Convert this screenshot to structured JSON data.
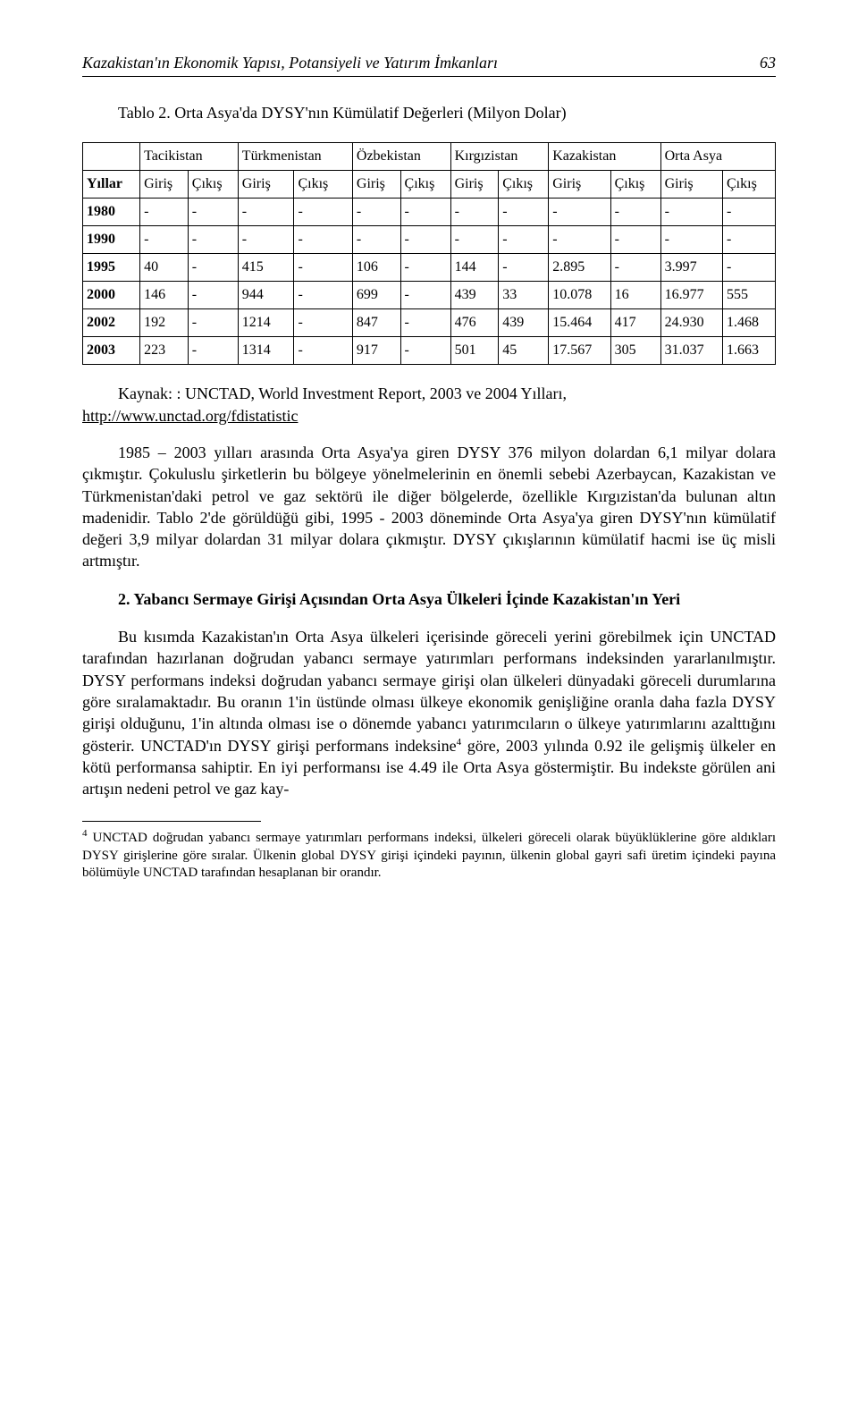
{
  "header": {
    "title_left": "Kazakistan'ın Ekonomik Yapısı, Potansiyeli ve Yatırım İmkanları",
    "page_num": "63"
  },
  "table": {
    "caption": "Tablo 2. Orta Asya'da DYSY'nın Kümülatif Değerleri (Milyon Dolar)",
    "countries": [
      "Tacikistan",
      "Türkmenistan",
      "Özbekistan",
      "Kırgızistan",
      "Kazakistan",
      "Orta Asya"
    ],
    "years_label": "Yıllar",
    "subheads": [
      "Giriş",
      "Çıkış",
      "Giriş",
      "Çıkış",
      "Giriş",
      "Çıkış",
      "Giriş",
      "Çıkış",
      "Giriş",
      "Çıkış",
      "Giriş",
      "Çıkış"
    ],
    "rows": [
      {
        "year": "1980",
        "cells": [
          "-",
          "-",
          "-",
          "-",
          "-",
          "-",
          "-",
          "-",
          "-",
          "-",
          "-",
          "-"
        ]
      },
      {
        "year": "1990",
        "cells": [
          "-",
          "-",
          "-",
          "-",
          "-",
          "-",
          "-",
          "-",
          "-",
          "-",
          "-",
          "-"
        ]
      },
      {
        "year": "1995",
        "cells": [
          "40",
          "-",
          "415",
          "-",
          "106",
          "-",
          "144",
          "-",
          "2.895",
          "-",
          "3.997",
          "-"
        ]
      },
      {
        "year": "2000",
        "cells": [
          "146",
          "-",
          "944",
          "-",
          "699",
          "-",
          "439",
          "33",
          "10.078",
          "16",
          "16.977",
          "555"
        ]
      },
      {
        "year": "2002",
        "cells": [
          "192",
          "-",
          "1214",
          "-",
          "847",
          "-",
          "476",
          "439",
          "15.464",
          "417",
          "24.930",
          "1.468"
        ]
      },
      {
        "year": "2003",
        "cells": [
          "223",
          "-",
          "1314",
          "-",
          "917",
          "-",
          "501",
          "45",
          "17.567",
          "305",
          "31.037",
          "1.663"
        ]
      }
    ]
  },
  "source": {
    "line": "Kaynak: : UNCTAD, World Investment Report, 2003 ve 2004 Yılları,",
    "url": "http://www.unctad.org/fdistatistic"
  },
  "para1": "1985 – 2003 yılları arasında Orta Asya'ya giren DYSY 376 milyon dolardan 6,1 milyar dolara çıkmıştır. Çokuluslu şirketlerin bu bölgeye yönelmelerinin en önemli sebebi Azerbaycan, Kazakistan ve Türkmenistan'daki petrol ve gaz sektörü ile diğer bölgelerde, özellikle Kırgızistan'da bulunan altın madenidir. Tablo 2'de görüldüğü gibi, 1995 - 2003 döneminde Orta Asya'ya giren DYSY'nın kümülatif değeri 3,9 milyar dolardan 31 milyar dolara çıkmıştır. DYSY çıkışlarının kümülatif hacmi ise üç misli artmıştır.",
  "section_title": "2. Yabancı Sermaye Girişi Açısından Orta Asya Ülkeleri İçinde Kazakistan'ın Yeri",
  "para2_a": "Bu kısımda Kazakistan'ın Orta Asya ülkeleri içerisinde göreceli yerini görebilmek için UNCTAD tarafından hazırlanan doğrudan yabancı sermaye yatırımları performans indeksinden yararlanılmıştır. DYSY performans indeksi doğrudan yabancı sermaye girişi olan ülkeleri dünyadaki göreceli durumlarına göre sıralamaktadır. Bu oranın 1'in üstünde olması ülkeye ekonomik genişliğine oranla daha fazla DYSY girişi olduğunu, 1'in altında olması ise o dönemde yabancı yatırımcıların o ülkeye yatırımlarını azalttığını gösterir. UNCTAD'ın DYSY girişi performans indeksine",
  "para2_sup": "4",
  "para2_b": " göre, 2003 yılında 0.92 ile gelişmiş ülkeler en kötü performansa sahiptir. En iyi performansı ise 4.49 ile Orta Asya göstermiştir. Bu indekste görülen ani artışın nedeni petrol ve gaz kay-",
  "footnote_sup": "4",
  "footnote": " UNCTAD doğrudan yabancı sermaye yatırımları performans indeksi, ülkeleri göreceli olarak büyüklüklerine göre aldıkları DYSY girişlerine göre sıralar. Ülkenin global DYSY girişi içindeki payının, ülkenin global gayri safi üretim içindeki payına bölümüyle UNCTAD tarafından hesaplanan bir orandır."
}
